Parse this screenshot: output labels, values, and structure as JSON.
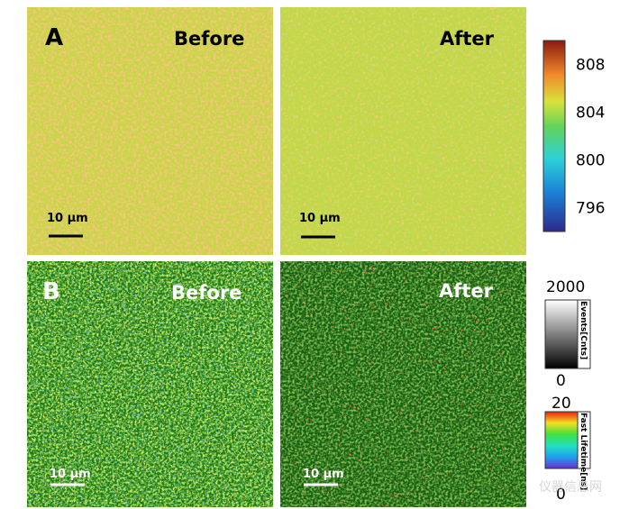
{
  "panels": [
    {
      "label": "A",
      "left_title": "Before",
      "right_title": "After",
      "left_scale": "10 μm",
      "right_scale": "10 μm"
    },
    {
      "label": "B",
      "left_title": "Before",
      "right_title": "After",
      "left_scale": "10 μm",
      "right_scale": "10 μm"
    }
  ],
  "colorbar_a": {
    "ticks": [
      808,
      804,
      800,
      796
    ]
  },
  "colorbar_events": {
    "top": 2000,
    "bottom": 0,
    "title": "Events[Cnts]"
  },
  "colorbar_lifetime": {
    "top": 20,
    "bottom": 0,
    "title": "Fast Lifetime[ns]"
  },
  "watermark": "仪器信息网"
}
